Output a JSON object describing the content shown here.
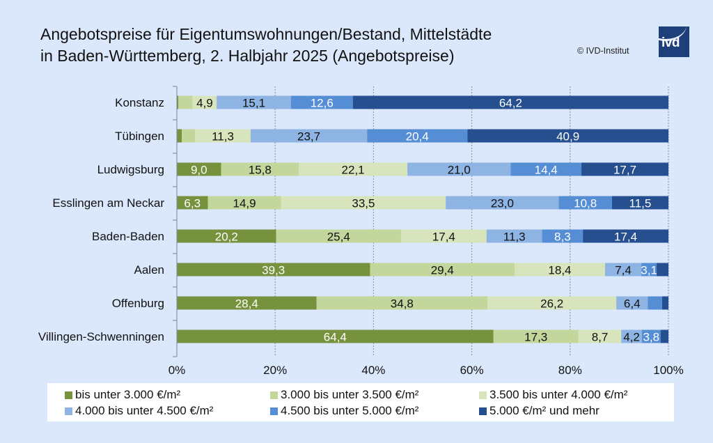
{
  "header": {
    "title_line1": "Angebotspreise für Eigentumswohnungen/Bestand, Mittelstädte",
    "title_line2": "in Baden-Württemberg, 2. Halbjahr 2025 (Angebotspreise)",
    "copyright": "© IVD-Institut",
    "logo_text": "ivd"
  },
  "colors": {
    "background": "#dbe8fb",
    "series": [
      "#76923c",
      "#c3d69b",
      "#d7e4bc",
      "#8eb4e3",
      "#558ed5",
      "#254f8f"
    ],
    "label_light": "#ffffff",
    "label_dark": "#111111"
  },
  "chart_data": {
    "type": "bar",
    "orientation": "horizontal",
    "stacked": "percent",
    "title": "Angebotspreise für Eigentumswohnungen/Bestand, Mittelstädte in Baden-Württemberg, 2. Halbjahr 2025 (Angebotspreise)",
    "xlabel": "",
    "ylabel": "",
    "xlim": [
      0,
      100
    ],
    "x_ticks": [
      "0%",
      "20%",
      "40%",
      "60%",
      "80%",
      "100%"
    ],
    "grid": "vertical dashed",
    "legend_position": "bottom",
    "categories": [
      "Konstanz",
      "Tübingen",
      "Ludwigsburg",
      "Esslingen am Neckar",
      "Baden-Baden",
      "Aalen",
      "Offenburg",
      "Villingen-Schwenningen"
    ],
    "series": [
      {
        "name": "bis unter 3.000  €/m²",
        "values": [
          0.3,
          1.0,
          9.0,
          6.3,
          20.2,
          39.3,
          28.4,
          64.4
        ],
        "labels": [
          "",
          "",
          "9,0",
          "6,3",
          "20,2",
          "39,3",
          "28,4",
          "64,4"
        ]
      },
      {
        "name": "3.000 bis unter 3.500 €/m²",
        "values": [
          2.9,
          2.7,
          15.8,
          14.9,
          25.4,
          29.4,
          34.8,
          17.3
        ],
        "labels": [
          "",
          "",
          "15,8",
          "14,9",
          "25,4",
          "29,4",
          "34,8",
          "17,3"
        ]
      },
      {
        "name": "3.500 bis unter 4.000 €/m²",
        "values": [
          4.9,
          11.3,
          22.1,
          33.5,
          17.4,
          18.4,
          26.2,
          8.7
        ],
        "labels": [
          "4,9",
          "11,3",
          "22,1",
          "33,5",
          "17,4",
          "18,4",
          "26,2",
          "8,7"
        ]
      },
      {
        "name": "4.000 bis unter 4.500 €/m²",
        "values": [
          15.1,
          23.7,
          21.0,
          23.0,
          11.3,
          7.4,
          6.4,
          4.2
        ],
        "labels": [
          "15,1",
          "23,7",
          "21,0",
          "23,0",
          "11,3",
          "7,4",
          "6,4",
          "4,2"
        ]
      },
      {
        "name": "4.500 bis unter 5.000 €/m²",
        "values": [
          12.6,
          20.4,
          14.4,
          10.8,
          8.3,
          3.1,
          2.9,
          3.8
        ],
        "labels": [
          "12,6",
          "20,4",
          "14,4",
          "10,8",
          "8,3",
          "3,1",
          "",
          "3,8"
        ]
      },
      {
        "name": "5.000  €/m² und mehr",
        "values": [
          64.2,
          40.9,
          17.7,
          11.5,
          17.4,
          2.4,
          1.3,
          1.6
        ],
        "labels": [
          "64,2",
          "40,9",
          "17,7",
          "11,5",
          "17,4",
          "",
          "",
          ""
        ]
      }
    ]
  }
}
